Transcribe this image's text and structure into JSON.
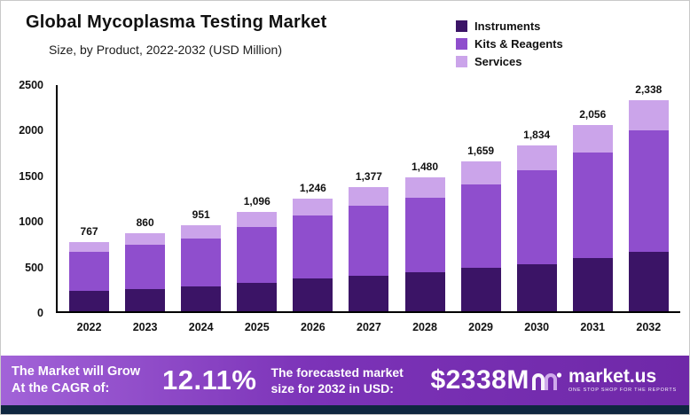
{
  "chart": {
    "title": "Global Mycoplasma Testing Market",
    "subtitle": "Size, by Product, 2022-2032 (USD Million)"
  },
  "chart_data": {
    "type": "bar",
    "stacked": true,
    "title": "Global Mycoplasma Testing Market",
    "subtitle": "Size, by Product, 2022-2032 (USD Million)",
    "categories": [
      "2022",
      "2023",
      "2024",
      "2025",
      "2026",
      "2027",
      "2028",
      "2029",
      "2030",
      "2031",
      "2032"
    ],
    "series": [
      {
        "name": "Instruments",
        "color": "#3b1466",
        "values": [
          230,
          245,
          275,
          315,
          363,
          392,
          430,
          480,
          520,
          588,
          657
        ]
      },
      {
        "name": "Kits & Reagents",
        "color": "#8f4ecd",
        "values": [
          430,
          490,
          530,
          620,
          697,
          775,
          825,
          920,
          1040,
          1167,
          1343
        ]
      },
      {
        "name": "Services",
        "color": "#cba4ea",
        "values": [
          107,
          125,
          146,
          161,
          186,
          210,
          225,
          259,
          274,
          301,
          338
        ]
      }
    ],
    "totals": [
      767,
      860,
      951,
      1096,
      1246,
      1377,
      1480,
      1659,
      1834,
      2056,
      2338
    ],
    "total_labels": [
      "767",
      "860",
      "951",
      "1,096",
      "1,246",
      "1,377",
      "1,480",
      "1,659",
      "1,834",
      "2,056",
      "2,338"
    ],
    "ylim": [
      0,
      2500
    ],
    "yticks": [
      0,
      500,
      1000,
      1500,
      2000,
      2500
    ],
    "grid": false,
    "legend_position": "top-right"
  },
  "banner": {
    "left_line1": "The Market will Grow",
    "left_line2": "At the CAGR of:",
    "cagr": "12.11%",
    "mid_line1": "The forecasted market",
    "mid_line2": "size for 2032 in USD:",
    "forecast": "$2338M",
    "brand": "market.us",
    "tagline": "ONE STOP SHOP FOR THE REPORTS"
  }
}
